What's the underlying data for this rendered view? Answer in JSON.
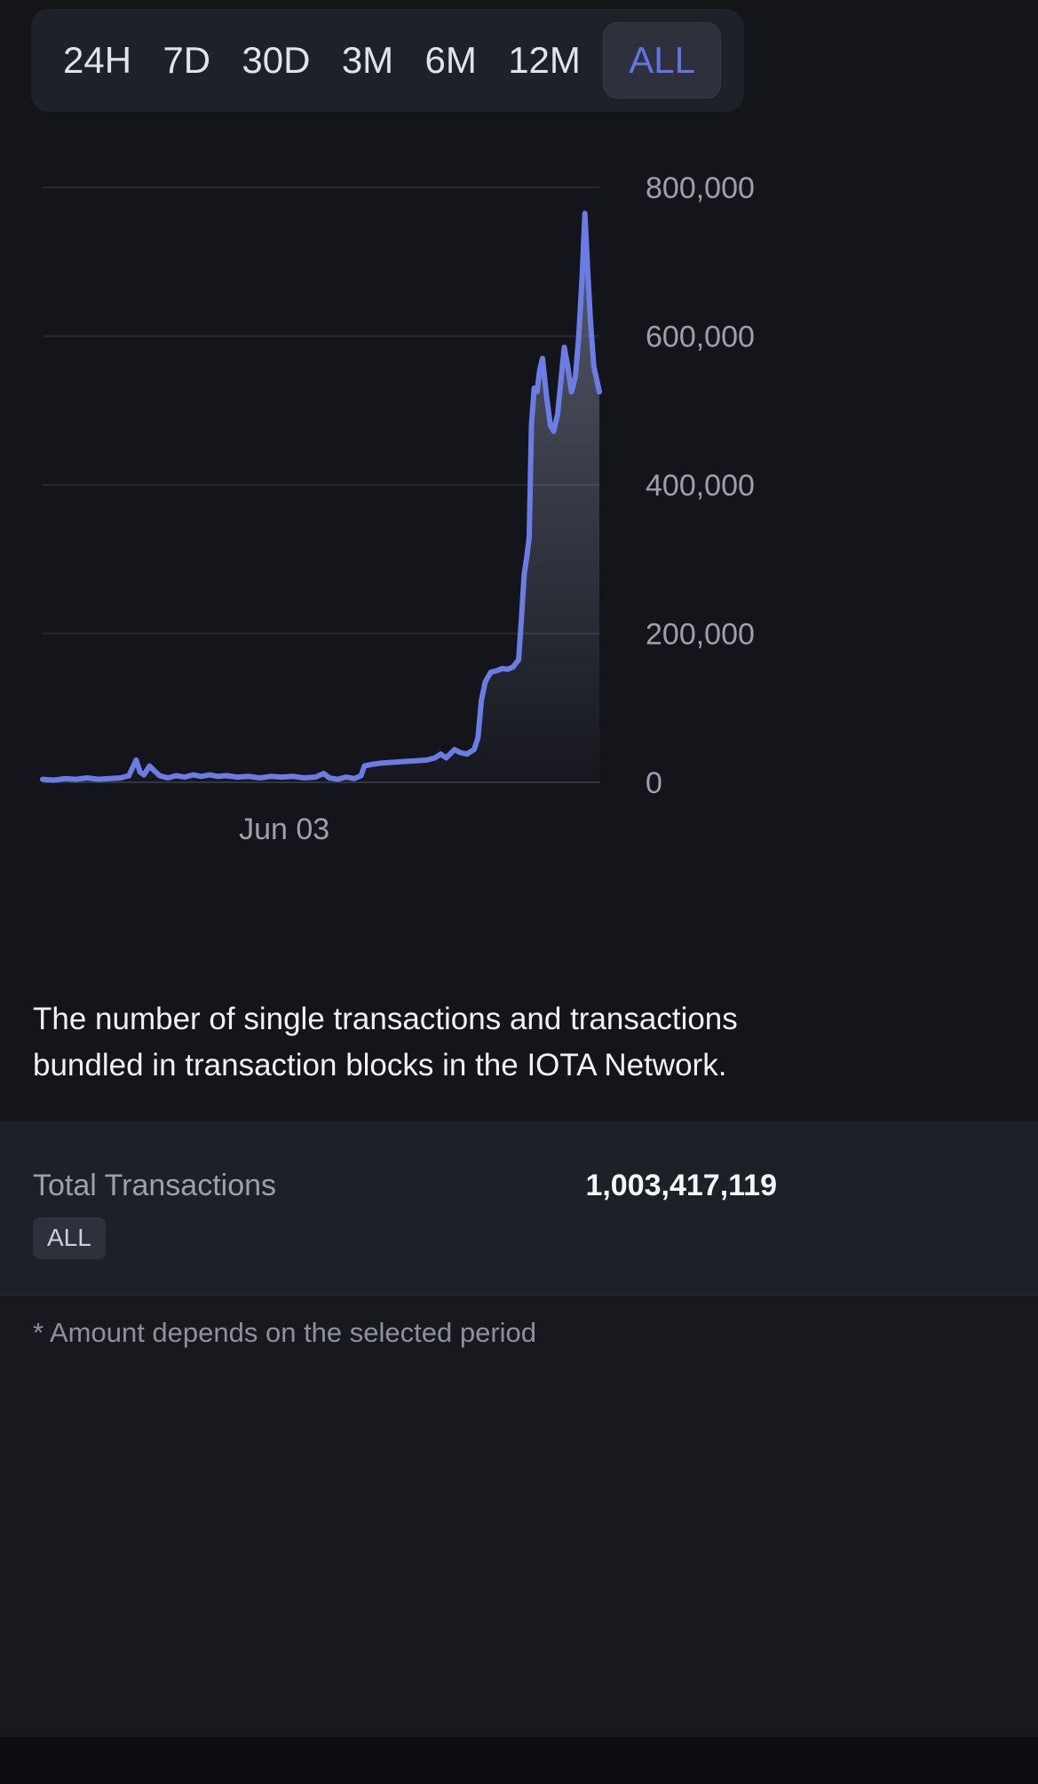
{
  "theme": {
    "bg": "#14151b",
    "tabbar_bg": "#1f2129",
    "accent": "#6176e4",
    "line_color": "#6b7ce4",
    "grid_color": "#262832",
    "zero_line_color": "#31333d",
    "axis_text_color": "#9da0ab",
    "section_bg": "#1e2028",
    "badge_bg": "#2e313c"
  },
  "time_range": {
    "options": [
      "24H",
      "7D",
      "30D",
      "3M",
      "6M",
      "12M",
      "ALL"
    ],
    "selected": "ALL"
  },
  "chart_data": {
    "type": "area",
    "title": "",
    "xlabel": "",
    "ylabel": "",
    "grid": true,
    "legend": false,
    "x_axis": {
      "tick_labels": [
        {
          "label": "Jun 03",
          "position": 0.434
        }
      ]
    },
    "y_axis": {
      "ticks": [
        0,
        200000,
        400000,
        600000,
        800000
      ],
      "tick_labels": [
        "0",
        "200,000",
        "400,000",
        "600,000",
        "800,000"
      ],
      "range": [
        0,
        915000
      ],
      "side": "right"
    },
    "series": [
      {
        "name": "Transactions",
        "points": [
          [
            0.0,
            4000
          ],
          [
            0.02,
            3000
          ],
          [
            0.04,
            5000
          ],
          [
            0.06,
            4000
          ],
          [
            0.08,
            6000
          ],
          [
            0.1,
            4000
          ],
          [
            0.12,
            5000
          ],
          [
            0.14,
            6000
          ],
          [
            0.155,
            9000
          ],
          [
            0.168,
            30000
          ],
          [
            0.175,
            14000
          ],
          [
            0.182,
            10000
          ],
          [
            0.192,
            22000
          ],
          [
            0.2,
            16000
          ],
          [
            0.21,
            9000
          ],
          [
            0.225,
            6000
          ],
          [
            0.24,
            9000
          ],
          [
            0.255,
            7000
          ],
          [
            0.27,
            10000
          ],
          [
            0.285,
            8000
          ],
          [
            0.3,
            10000
          ],
          [
            0.315,
            8000
          ],
          [
            0.33,
            9000
          ],
          [
            0.35,
            7000
          ],
          [
            0.37,
            8000
          ],
          [
            0.39,
            6000
          ],
          [
            0.41,
            8000
          ],
          [
            0.43,
            7000
          ],
          [
            0.45,
            8000
          ],
          [
            0.47,
            6000
          ],
          [
            0.49,
            7000
          ],
          [
            0.505,
            12000
          ],
          [
            0.515,
            6000
          ],
          [
            0.53,
            4000
          ],
          [
            0.545,
            7000
          ],
          [
            0.56,
            5000
          ],
          [
            0.572,
            9000
          ],
          [
            0.578,
            22000
          ],
          [
            0.59,
            24000
          ],
          [
            0.61,
            26000
          ],
          [
            0.63,
            27000
          ],
          [
            0.65,
            28000
          ],
          [
            0.67,
            29000
          ],
          [
            0.69,
            30000
          ],
          [
            0.705,
            33000
          ],
          [
            0.715,
            38000
          ],
          [
            0.725,
            33000
          ],
          [
            0.74,
            44000
          ],
          [
            0.75,
            40000
          ],
          [
            0.762,
            38000
          ],
          [
            0.775,
            44000
          ],
          [
            0.782,
            60000
          ],
          [
            0.788,
            110000
          ],
          [
            0.795,
            135000
          ],
          [
            0.805,
            148000
          ],
          [
            0.815,
            150000
          ],
          [
            0.825,
            153000
          ],
          [
            0.835,
            152000
          ],
          [
            0.845,
            155000
          ],
          [
            0.855,
            165000
          ],
          [
            0.86,
            220000
          ],
          [
            0.865,
            280000
          ],
          [
            0.87,
            305000
          ],
          [
            0.874,
            330000
          ],
          [
            0.878,
            480000
          ],
          [
            0.883,
            530000
          ],
          [
            0.888,
            525000
          ],
          [
            0.893,
            555000
          ],
          [
            0.898,
            570000
          ],
          [
            0.905,
            520000
          ],
          [
            0.912,
            480000
          ],
          [
            0.918,
            472000
          ],
          [
            0.925,
            495000
          ],
          [
            0.931,
            540000
          ],
          [
            0.937,
            585000
          ],
          [
            0.943,
            560000
          ],
          [
            0.95,
            525000
          ],
          [
            0.957,
            545000
          ],
          [
            0.963,
            600000
          ],
          [
            0.969,
            680000
          ],
          [
            0.974,
            765000
          ],
          [
            0.979,
            690000
          ],
          [
            0.984,
            620000
          ],
          [
            0.99,
            560000
          ],
          [
            1.0,
            525000
          ]
        ]
      }
    ]
  },
  "description": {
    "full": "The number of single transactions and transactions bundled in transaction blocks in the IOTA Network.",
    "lines": [
      "The number of single transactions and transactions",
      "bundled in transaction blocks in the IOTA Network."
    ]
  },
  "total": {
    "label": "Total Transactions",
    "value": "1,003,417,119",
    "badge": "ALL"
  },
  "footnote": "* Amount depends on the selected period"
}
